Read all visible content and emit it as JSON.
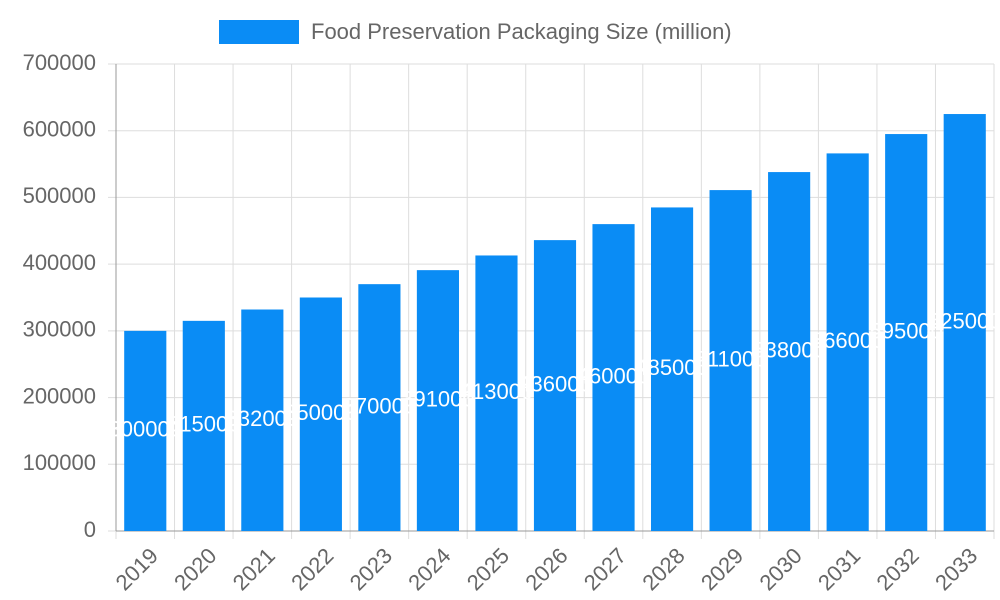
{
  "chart_data": {
    "type": "bar",
    "categories": [
      "2019",
      "2020",
      "2021",
      "2022",
      "2023",
      "2024",
      "2025",
      "2026",
      "2027",
      "2028",
      "2029",
      "2030",
      "2031",
      "2032",
      "2033"
    ],
    "series": [
      {
        "name": "Food Preservation Packaging Size (million)",
        "color": "#0a8cf5",
        "values": [
          300000,
          315000,
          332000,
          350000,
          370000,
          391000,
          413000,
          436000,
          460000,
          485000,
          511000,
          538000,
          566000,
          595000,
          625000
        ]
      }
    ],
    "ylim": [
      0,
      700000
    ],
    "yticks": [
      0,
      100000,
      200000,
      300000,
      400000,
      500000,
      600000,
      700000
    ],
    "grid": true,
    "legend": "top",
    "data_labels": true
  }
}
